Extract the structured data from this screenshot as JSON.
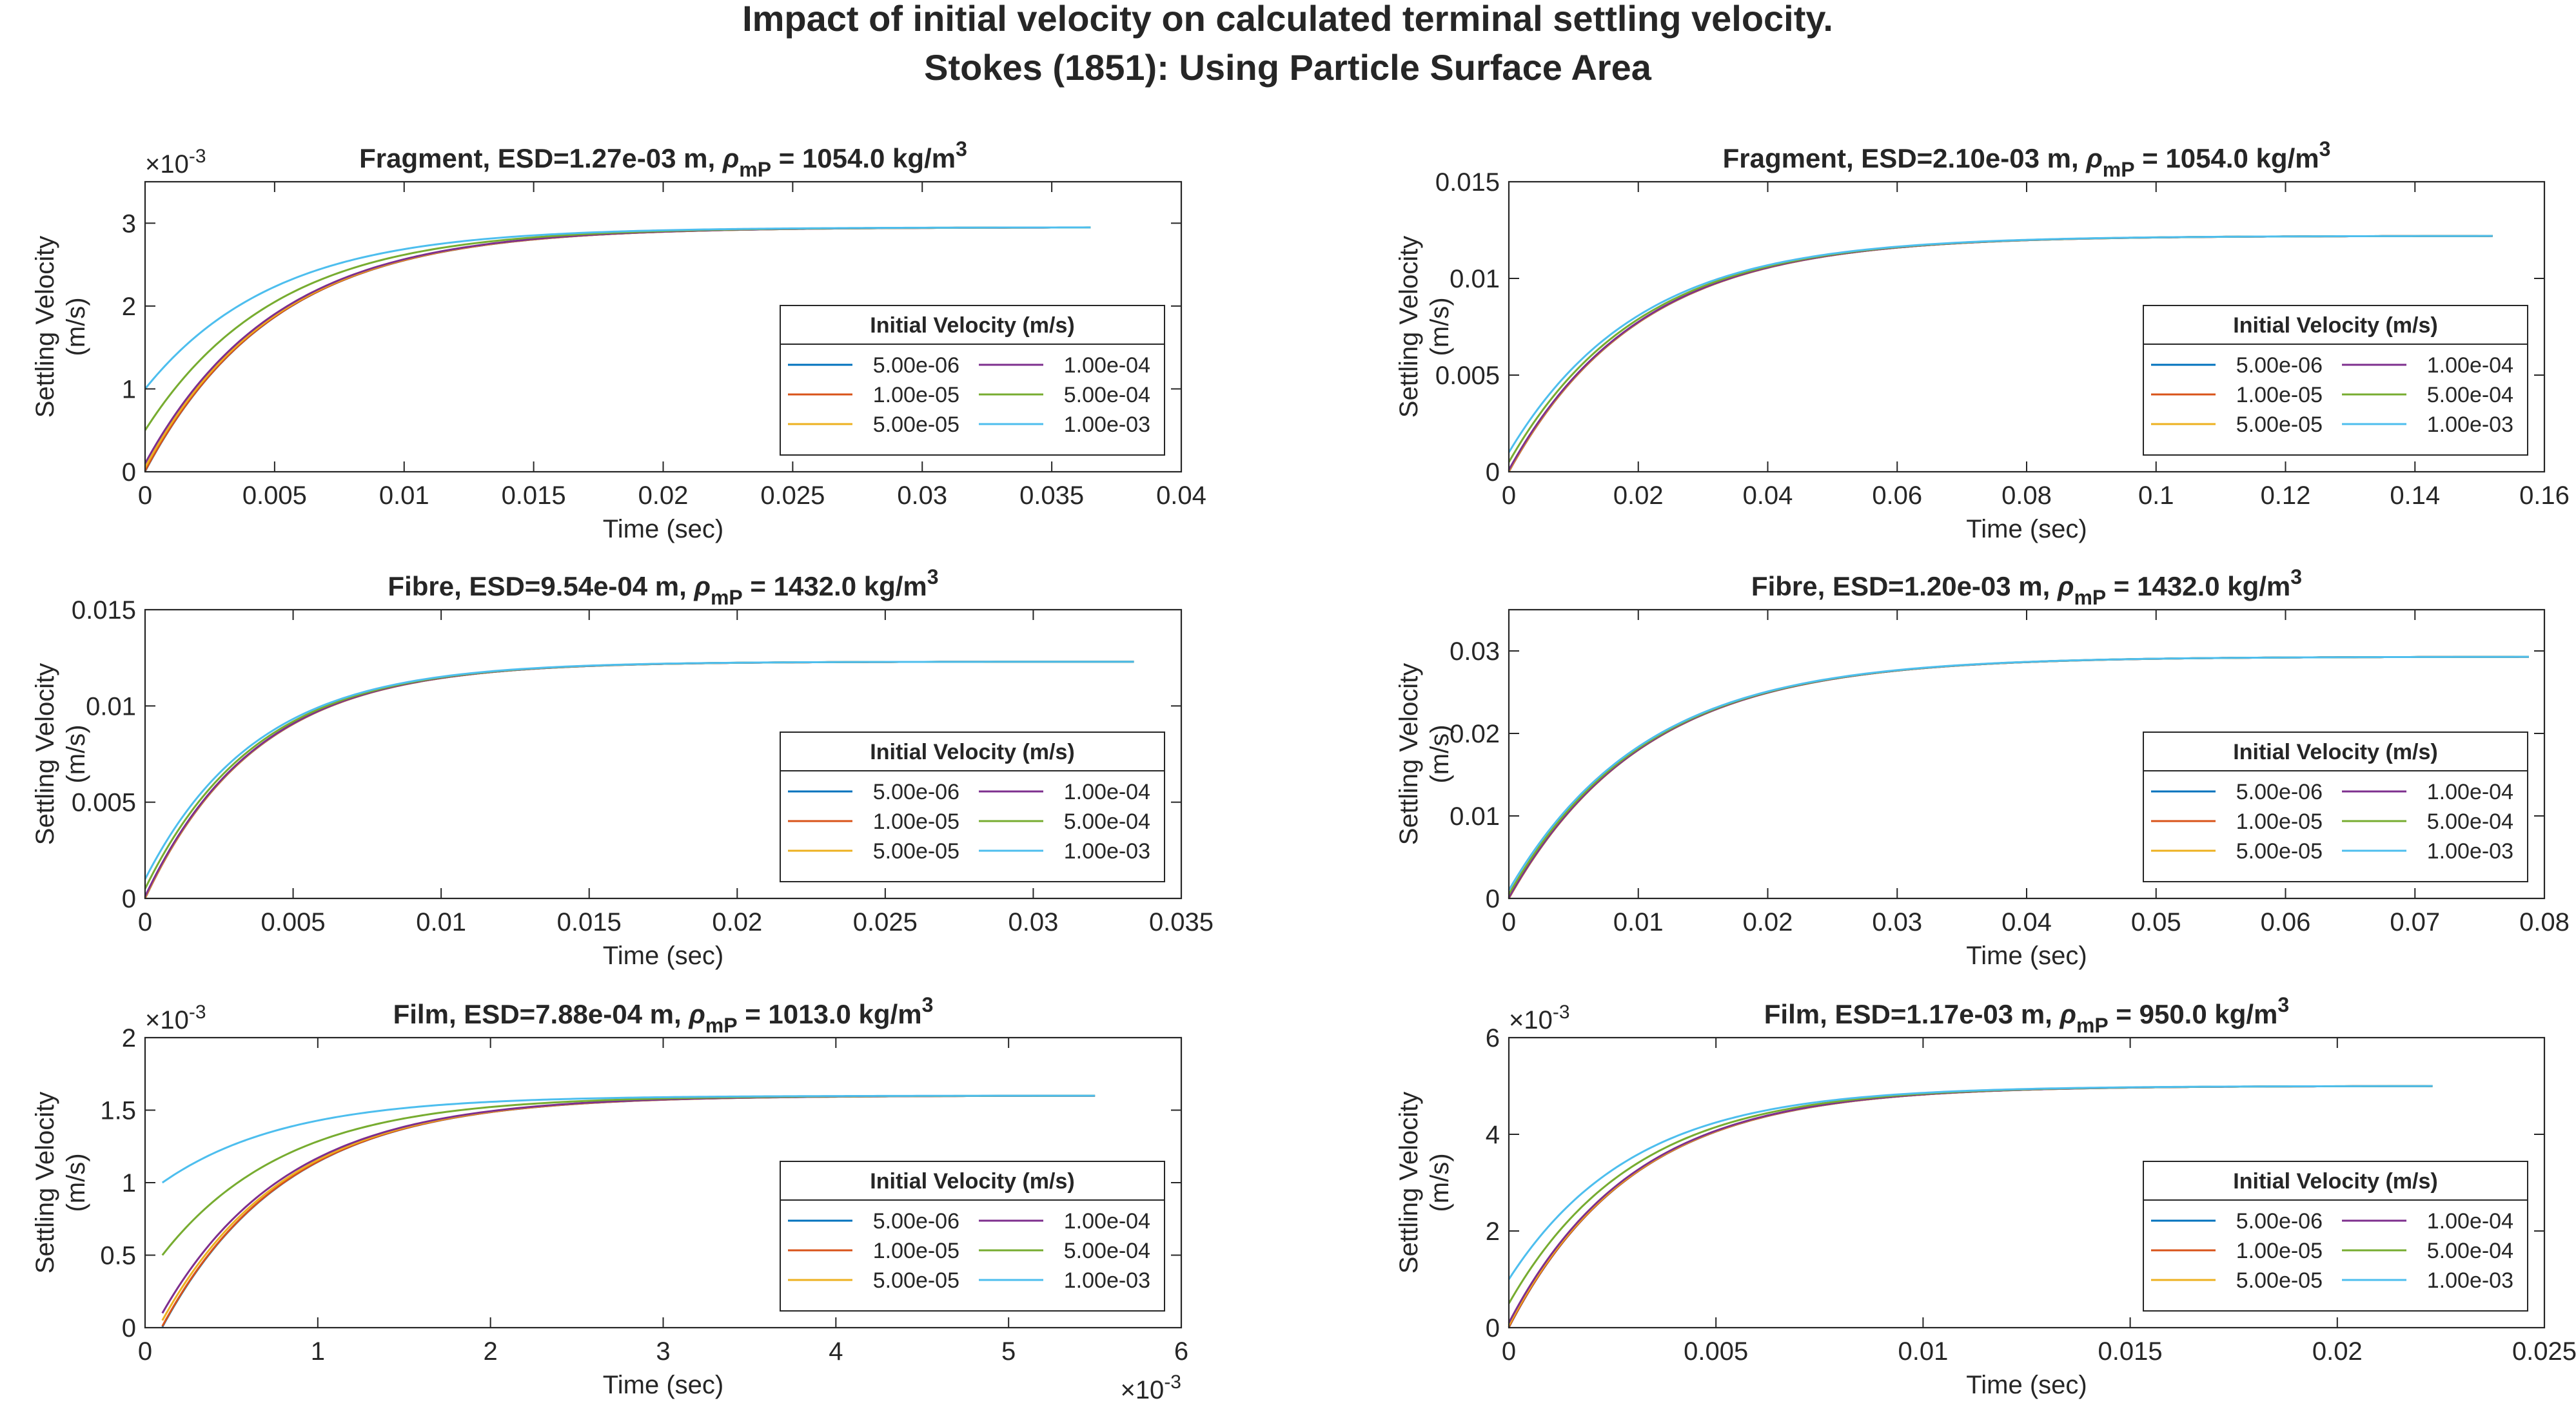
{
  "figure": {
    "title_line1": "Impact of initial velocity on calculated terminal settling velocity.",
    "title_line2": "Stokes (1851): Using Particle Surface Area"
  },
  "chart_data": [
    {
      "type": "line",
      "title": {
        "prefix": "Fragment, ESD=1.27e-03 m, ",
        "rho": "ρ",
        "sub": "mP",
        "value": " = 1054.0 kg/m",
        "sup": "3"
      },
      "xlabel": "Time (sec)",
      "ylabel_line1": "Settling Velocity",
      "ylabel_line2": "(m/s)",
      "xlim": [
        0,
        0.04
      ],
      "ylim": [
        0,
        3.5
      ],
      "xticks": [
        0,
        0.005,
        0.01,
        0.015,
        0.02,
        0.025,
        0.03,
        0.035,
        0.04
      ],
      "xtick_labels": [
        "0",
        "0.005",
        "0.01",
        "0.015",
        "0.02",
        "0.025",
        "0.03",
        "0.035",
        "0.04"
      ],
      "yticks": [
        0,
        1,
        2,
        3
      ],
      "ytick_labels": [
        "0",
        "1",
        "2",
        "3"
      ],
      "x_exponent": "",
      "y_exponent": "-3",
      "vt": 2.95,
      "tau": 0.005,
      "t0": 0,
      "tmax": 0.0365,
      "legend": {
        "title": "Initial Velocity (m/s)",
        "placement": "lower-right"
      },
      "series": [
        {
          "name": "5.00e-06",
          "v0": 0.005,
          "color": "#0072BD"
        },
        {
          "name": "1.00e-05",
          "v0": 0.01,
          "color": "#D95319"
        },
        {
          "name": "5.00e-05",
          "v0": 0.05,
          "color": "#EDB120"
        },
        {
          "name": "1.00e-04",
          "v0": 0.1,
          "color": "#7E2F8E"
        },
        {
          "name": "5.00e-04",
          "v0": 0.5,
          "color": "#77AC30"
        },
        {
          "name": "1.00e-03",
          "v0": 1.0,
          "color": "#4DBEEE"
        }
      ]
    },
    {
      "type": "line",
      "title": {
        "prefix": "Fragment, ESD=2.10e-03 m, ",
        "rho": "ρ",
        "sub": "mP",
        "value": " = 1054.0 kg/m",
        "sup": "3"
      },
      "xlabel": "Time (sec)",
      "ylabel_line1": "Settling Velocity",
      "ylabel_line2": "(m/s)",
      "xlim": [
        0,
        0.16
      ],
      "ylim": [
        0,
        0.015
      ],
      "xticks": [
        0,
        0.02,
        0.04,
        0.06,
        0.08,
        0.1,
        0.12,
        0.14,
        0.16
      ],
      "xtick_labels": [
        "0",
        "0.02",
        "0.04",
        "0.06",
        "0.08",
        "0.1",
        "0.12",
        "0.14",
        "0.16"
      ],
      "yticks": [
        0,
        0.005,
        0.01,
        0.015
      ],
      "ytick_labels": [
        "0",
        "0.005",
        "0.01",
        "0.015"
      ],
      "x_exponent": "",
      "y_exponent": "",
      "vt": 0.0122,
      "tau": 0.02,
      "t0": 0,
      "tmax": 0.152,
      "legend": {
        "title": "Initial Velocity (m/s)",
        "placement": "lower-right"
      },
      "series": [
        {
          "name": "5.00e-06",
          "v0": 5e-06,
          "color": "#0072BD"
        },
        {
          "name": "1.00e-05",
          "v0": 1e-05,
          "color": "#D95319"
        },
        {
          "name": "5.00e-05",
          "v0": 5e-05,
          "color": "#EDB120"
        },
        {
          "name": "1.00e-04",
          "v0": 0.0001,
          "color": "#7E2F8E"
        },
        {
          "name": "5.00e-04",
          "v0": 0.0005,
          "color": "#77AC30"
        },
        {
          "name": "1.00e-03",
          "v0": 0.001,
          "color": "#4DBEEE"
        }
      ]
    },
    {
      "type": "line",
      "title": {
        "prefix": "Fibre, ESD=9.54e-04 m, ",
        "rho": "ρ",
        "sub": "mP",
        "value": " = 1432.0 kg/m",
        "sup": "3"
      },
      "xlabel": "Time (sec)",
      "ylabel_line1": "Settling Velocity",
      "ylabel_line2": "(m/s)",
      "xlim": [
        0,
        0.035
      ],
      "ylim": [
        0,
        0.015
      ],
      "xticks": [
        0,
        0.005,
        0.01,
        0.015,
        0.02,
        0.025,
        0.03,
        0.035
      ],
      "xtick_labels": [
        "0",
        "0.005",
        "0.01",
        "0.015",
        "0.02",
        "0.025",
        "0.03",
        "0.035"
      ],
      "yticks": [
        0,
        0.005,
        0.01,
        0.015
      ],
      "ytick_labels": [
        "0",
        "0.005",
        "0.01",
        "0.015"
      ],
      "x_exponent": "",
      "y_exponent": "",
      "vt": 0.0123,
      "tau": 0.00375,
      "t0": 0,
      "tmax": 0.0334,
      "legend": {
        "title": "Initial Velocity (m/s)",
        "placement": "lower-right"
      },
      "series": [
        {
          "name": "5.00e-06",
          "v0": 5e-06,
          "color": "#0072BD"
        },
        {
          "name": "1.00e-05",
          "v0": 1e-05,
          "color": "#D95319"
        },
        {
          "name": "5.00e-05",
          "v0": 5e-05,
          "color": "#EDB120"
        },
        {
          "name": "1.00e-04",
          "v0": 0.0001,
          "color": "#7E2F8E"
        },
        {
          "name": "5.00e-04",
          "v0": 0.0005,
          "color": "#77AC30"
        },
        {
          "name": "1.00e-03",
          "v0": 0.001,
          "color": "#4DBEEE"
        }
      ]
    },
    {
      "type": "line",
      "title": {
        "prefix": "Fibre, ESD=1.20e-03 m, ",
        "rho": "ρ",
        "sub": "mP",
        "value": " = 1432.0 kg/m",
        "sup": "3"
      },
      "xlabel": "Time (sec)",
      "ylabel_line1": "Settling Velocity",
      "ylabel_line2": "(m/s)",
      "xlim": [
        0,
        0.08
      ],
      "ylim": [
        0,
        0.035
      ],
      "xticks": [
        0,
        0.01,
        0.02,
        0.03,
        0.04,
        0.05,
        0.06,
        0.07,
        0.08
      ],
      "xtick_labels": [
        "0",
        "0.01",
        "0.02",
        "0.03",
        "0.04",
        "0.05",
        "0.06",
        "0.07",
        "0.08"
      ],
      "yticks": [
        0,
        0.01,
        0.02,
        0.03
      ],
      "ytick_labels": [
        "0",
        "0.01",
        "0.02",
        "0.03"
      ],
      "x_exponent": "",
      "y_exponent": "",
      "vt": 0.0293,
      "tau": 0.0105,
      "t0": 0,
      "tmax": 0.0788,
      "legend": {
        "title": "Initial Velocity (m/s)",
        "placement": "lower-right"
      },
      "series": [
        {
          "name": "5.00e-06",
          "v0": 5e-06,
          "color": "#0072BD"
        },
        {
          "name": "1.00e-05",
          "v0": 1e-05,
          "color": "#D95319"
        },
        {
          "name": "5.00e-05",
          "v0": 5e-05,
          "color": "#EDB120"
        },
        {
          "name": "1.00e-04",
          "v0": 0.0001,
          "color": "#7E2F8E"
        },
        {
          "name": "5.00e-04",
          "v0": 0.0005,
          "color": "#77AC30"
        },
        {
          "name": "1.00e-03",
          "v0": 0.001,
          "color": "#4DBEEE"
        }
      ]
    },
    {
      "type": "line",
      "title": {
        "prefix": "Film, ESD=7.88e-04 m, ",
        "rho": "ρ",
        "sub": "mP",
        "value": " = 1013.0 kg/m",
        "sup": "3"
      },
      "xlabel": "Time (sec)",
      "ylabel_line1": "Settling Velocity",
      "ylabel_line2": "(m/s)",
      "xlim": [
        0,
        6
      ],
      "ylim": [
        0,
        2
      ],
      "xticks": [
        0,
        1,
        2,
        3,
        4,
        5,
        6
      ],
      "xtick_labels": [
        "0",
        "1",
        "2",
        "3",
        "4",
        "5",
        "6"
      ],
      "yticks": [
        0,
        0.5,
        1,
        1.5,
        2
      ],
      "ytick_labels": [
        "0",
        "0.5",
        "1",
        "1.5",
        "2"
      ],
      "x_exponent": "-3",
      "y_exponent": "-3",
      "vt": 1.6,
      "tau": 0.72,
      "t0": 0.1,
      "tmax": 5.5,
      "legend": {
        "title": "Initial Velocity (m/s)",
        "placement": "lower-right"
      },
      "series": [
        {
          "name": "5.00e-06",
          "v0": 0.005,
          "color": "#0072BD"
        },
        {
          "name": "1.00e-05",
          "v0": 0.01,
          "color": "#D95319"
        },
        {
          "name": "5.00e-05",
          "v0": 0.05,
          "color": "#EDB120"
        },
        {
          "name": "1.00e-04",
          "v0": 0.1,
          "color": "#7E2F8E"
        },
        {
          "name": "5.00e-04",
          "v0": 0.5,
          "color": "#77AC30"
        },
        {
          "name": "1.00e-03",
          "v0": 1.0,
          "color": "#4DBEEE"
        }
      ]
    },
    {
      "type": "line",
      "title": {
        "prefix": "Film, ESD=1.17e-03 m, ",
        "rho": "ρ",
        "sub": "mP",
        "value": " = 950.0 kg/m",
        "sup": "3"
      },
      "xlabel": "Time (sec)",
      "ylabel_line1": "Settling Velocity",
      "ylabel_line2": "(m/s)",
      "xlim": [
        0,
        0.025
      ],
      "ylim": [
        0,
        6
      ],
      "xticks": [
        0,
        0.005,
        0.01,
        0.015,
        0.02,
        0.025
      ],
      "xtick_labels": [
        "0",
        "0.005",
        "0.01",
        "0.015",
        "0.02",
        "0.025"
      ],
      "yticks": [
        0,
        2,
        4,
        6
      ],
      "ytick_labels": [
        "0",
        "2",
        "4",
        "6"
      ],
      "x_exponent": "",
      "y_exponent": "-3",
      "vt": 5.0,
      "tau": 0.003,
      "t0": 0,
      "tmax": 0.0223,
      "legend": {
        "title": "Initial Velocity (m/s)",
        "placement": "lower-right"
      },
      "series": [
        {
          "name": "5.00e-06",
          "v0": 0.005,
          "color": "#0072BD"
        },
        {
          "name": "1.00e-05",
          "v0": 0.01,
          "color": "#D95319"
        },
        {
          "name": "5.00e-05",
          "v0": 0.05,
          "color": "#EDB120"
        },
        {
          "name": "1.00e-04",
          "v0": 0.1,
          "color": "#7E2F8E"
        },
        {
          "name": "5.00e-04",
          "v0": 0.5,
          "color": "#77AC30"
        },
        {
          "name": "1.00e-03",
          "v0": 1.0,
          "color": "#4DBEEE"
        }
      ]
    }
  ]
}
